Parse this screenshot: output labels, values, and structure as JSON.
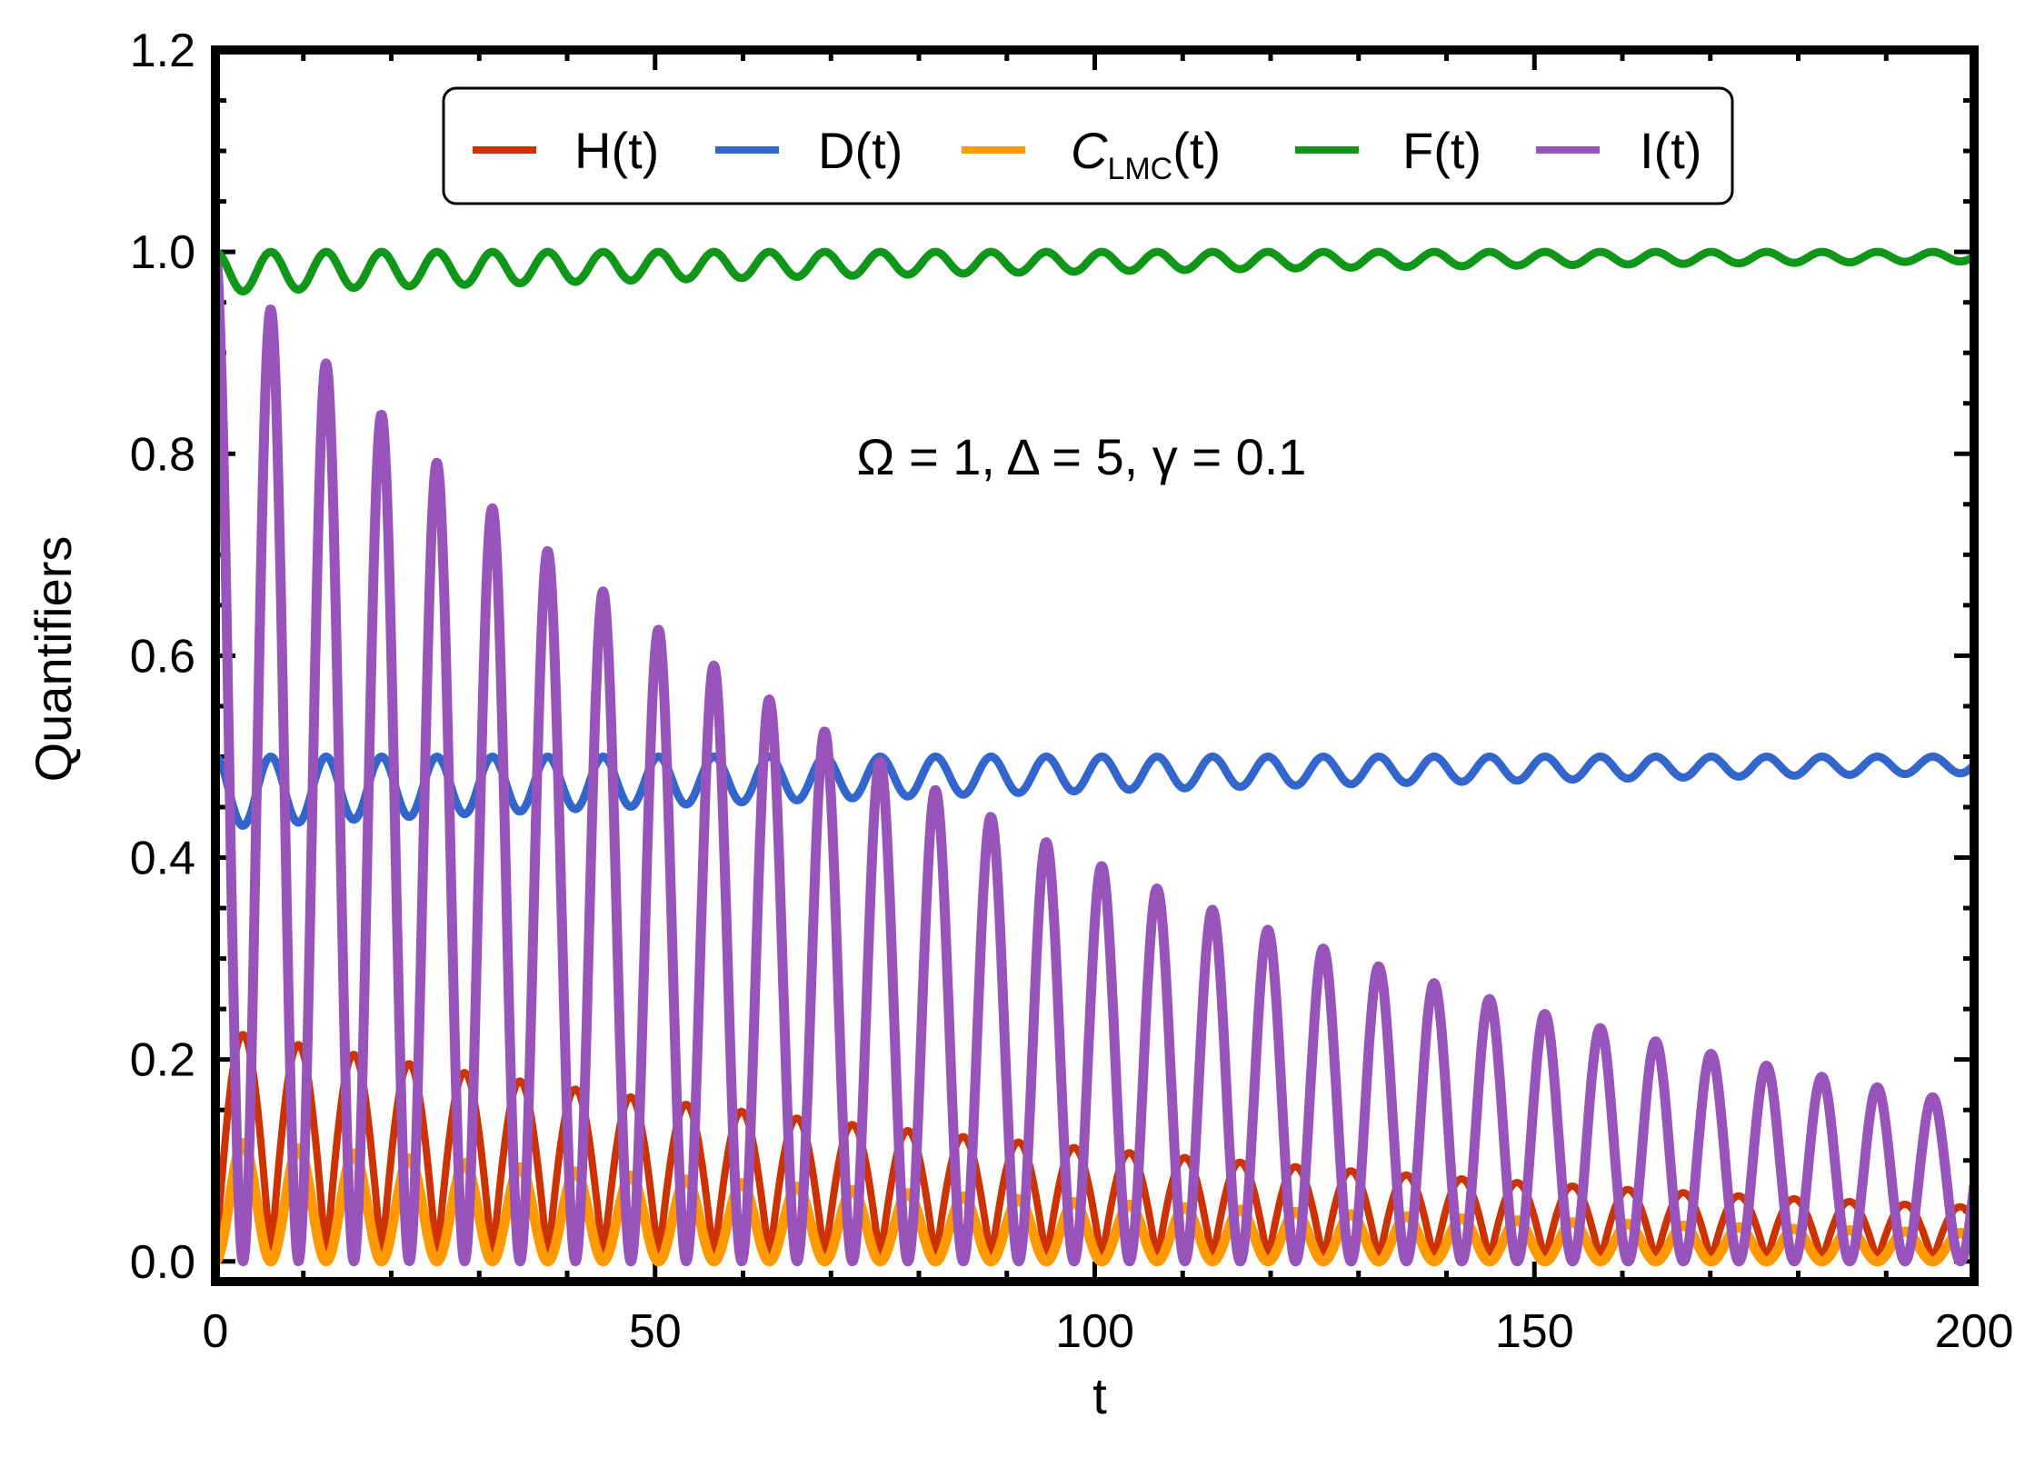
{
  "chart_data": {
    "type": "line",
    "title": "",
    "xlabel": "t",
    "ylabel": "Quantifiers",
    "xlim": [
      0,
      200
    ],
    "ylim": [
      -0.02,
      1.2
    ],
    "xticks": [
      0,
      50,
      100,
      150,
      200
    ],
    "xtick_labels": [
      "0",
      "50",
      "100",
      "150",
      "200"
    ],
    "yticks": [
      0.0,
      0.2,
      0.4,
      0.6,
      0.8,
      1.0,
      1.2
    ],
    "ytick_labels": [
      "0.0",
      "0.2",
      "0.4",
      "0.6",
      "0.8",
      "1.0",
      "1.2"
    ],
    "annotation": "Ω = 1, Δ = 5, γ = 0.1",
    "legend": {
      "placement": "top-center",
      "entries": [
        {
          "key": "H",
          "label": "H(t)"
        },
        {
          "key": "D",
          "label": "D(t)"
        },
        {
          "key": "C",
          "label_main": "C",
          "label_sub": "LMC",
          "label_tail": "(t)"
        },
        {
          "key": "F",
          "label": "F(t)"
        },
        {
          "key": "I",
          "label": "I(t)"
        }
      ]
    },
    "series": [
      {
        "key": "H",
        "name": "H(t)",
        "color": "#cc3300",
        "period": 6.3,
        "amp_start": 0.23,
        "decay": 0.0073,
        "floor": 0.0
      },
      {
        "key": "D",
        "name": "D(t)",
        "color": "#3366cc",
        "period": 6.3,
        "center": 0.5,
        "amp_start": 0.07,
        "decay": 0.0073
      },
      {
        "key": "C",
        "name": "CLMC(t)",
        "color": "#ff9900",
        "period": 6.3,
        "amp_start": 0.12,
        "decay": 0.0073,
        "floor": 0.0
      },
      {
        "key": "F",
        "name": "F(t)",
        "color": "#109618",
        "period": 6.3,
        "center": 1.0,
        "amp_start": 0.04,
        "decay": 0.0073
      },
      {
        "key": "I",
        "name": "I(t)",
        "color": "#9954bb",
        "period": 6.3,
        "amp_start": 1.0,
        "decay": 0.0093,
        "floor": 0.0
      }
    ]
  }
}
